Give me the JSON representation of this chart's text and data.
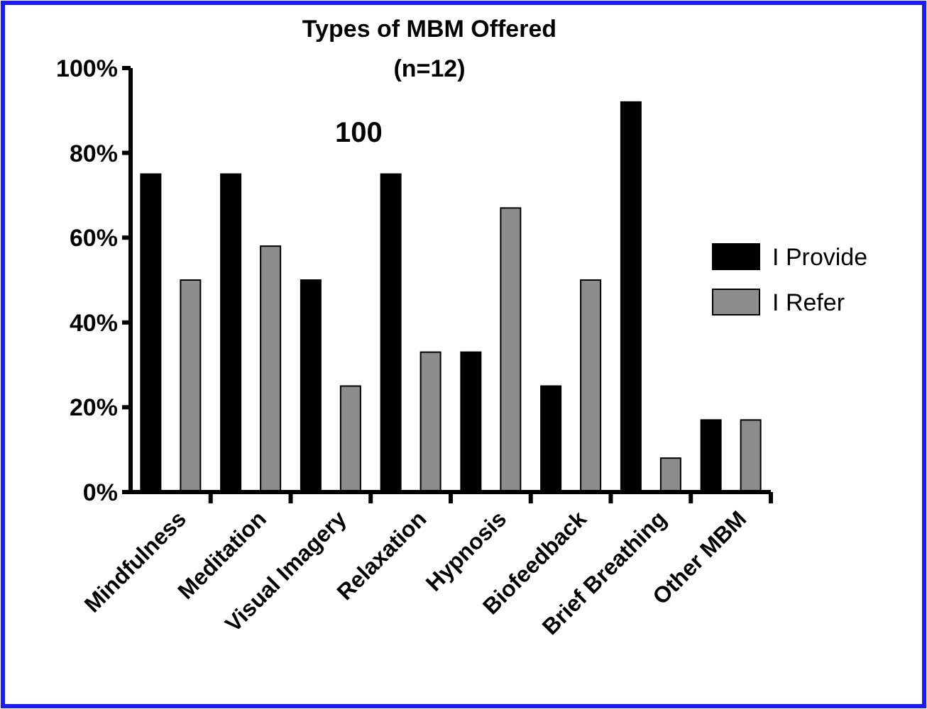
{
  "chart_data": {
    "type": "bar",
    "title": "Types of MBM Offered",
    "subtitle": "(n=12)",
    "categories": [
      "Mindfulness",
      "Meditation",
      "Visual Imagery",
      "Relaxation",
      "Hypnosis",
      "Biofeedback",
      "Brief Breathing",
      "Other MBM"
    ],
    "series": [
      {
        "name": "I Provide",
        "color": "#000000",
        "values": [
          75,
          75,
          50,
          75,
          33,
          25,
          92,
          17
        ]
      },
      {
        "name": "I Refer",
        "color": "#8c8c8c",
        "values": [
          50,
          58,
          25,
          33,
          67,
          50,
          8,
          17
        ]
      }
    ],
    "ylim": [
      0,
      100
    ],
    "yticks": [
      {
        "value": 0,
        "label": "0%"
      },
      {
        "value": 20,
        "label": "20%"
      },
      {
        "value": 40,
        "label": "40%"
      },
      {
        "value": 60,
        "label": "60%"
      },
      {
        "value": 80,
        "label": "80%"
      },
      {
        "value": 100,
        "label": "100%"
      }
    ],
    "annotations": [
      "100"
    ],
    "legend": "right",
    "grid": false
  }
}
